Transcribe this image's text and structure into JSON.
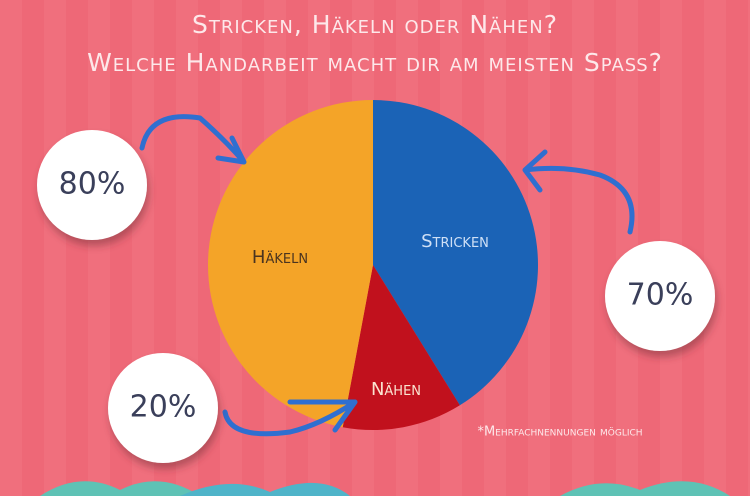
{
  "chart_data": {
    "type": "pie",
    "title": "Stricken, Häkeln oder Nähen?",
    "subtitle": "Welche Handarbeit macht dir am meisten Spaß?",
    "categories": [
      "Stricken",
      "Nähen",
      "Häkeln"
    ],
    "values": [
      70,
      20,
      80
    ],
    "value_labels": [
      "70%",
      "20%",
      "80%"
    ],
    "colors": [
      "#1b63b6",
      "#c1111d",
      "#f4a428"
    ],
    "annotation": "*Mehrfachnennungen möglich"
  }
}
